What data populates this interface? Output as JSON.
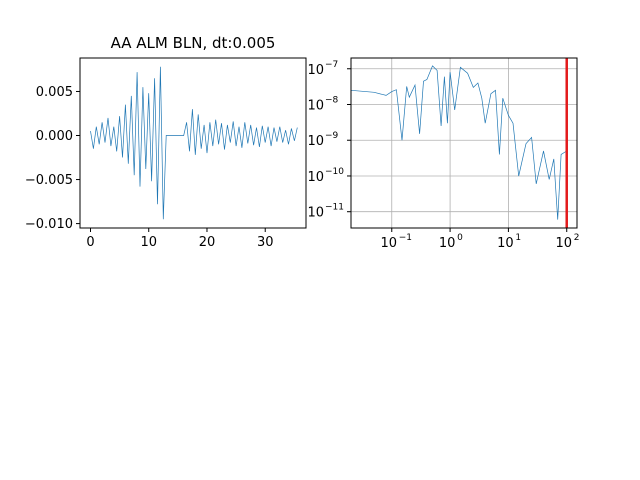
{
  "chart_data": [
    {
      "type": "line",
      "title": "AA ALM BLN, dt:0.005",
      "xlabel": "",
      "ylabel": "",
      "xlim": [
        -1.8,
        37
      ],
      "ylim": [
        -0.0105,
        0.0088
      ],
      "grid": false,
      "x_ticks": [
        0,
        10,
        20,
        30
      ],
      "x_tick_labels": [
        "0",
        "10",
        "20",
        "30"
      ],
      "y_ticks": [
        -0.01,
        -0.005,
        0.0,
        0.005
      ],
      "y_tick_labels": [
        "−0.010",
        "−0.005",
        "0.000",
        "0.005"
      ],
      "series": [
        {
          "color": "#1f77b4",
          "x": [
            0,
            0.5,
            1,
            1.5,
            2,
            2.5,
            3,
            3.5,
            4,
            4.5,
            5,
            5.5,
            6,
            6.5,
            7,
            7.5,
            8,
            8.5,
            9,
            9.5,
            10,
            10.5,
            11,
            11.5,
            12,
            12.5,
            13,
            14,
            15,
            16,
            16.5,
            17,
            17.5,
            18,
            18.5,
            19,
            19.5,
            20,
            20.5,
            21,
            21.5,
            22,
            22.5,
            23,
            23.5,
            24,
            24.5,
            25,
            25.5,
            26,
            26.5,
            27,
            27.5,
            28,
            28.5,
            29,
            29.5,
            30,
            30.5,
            31,
            31.5,
            32,
            32.5,
            33,
            33.5,
            34,
            34.5,
            35,
            35.5
          ],
          "values": [
            0.0005,
            -0.0015,
            0.001,
            -0.001,
            0.0015,
            -0.0008,
            0.002,
            -0.0012,
            0.001,
            -0.0018,
            0.0022,
            -0.0025,
            0.0035,
            -0.0032,
            0.0045,
            -0.0045,
            0.0072,
            -0.0058,
            0.0055,
            -0.0038,
            0.0048,
            -0.0052,
            0.0065,
            -0.0078,
            0.0078,
            -0.0095,
            0.0,
            0.0,
            0.0,
            0.0,
            0.0015,
            -0.0018,
            0.003,
            -0.0022,
            0.0024,
            -0.0015,
            0.0012,
            -0.002,
            0.0015,
            -0.0012,
            0.0018,
            -0.001,
            0.0014,
            -0.0016,
            0.0012,
            -0.0008,
            0.0016,
            -0.0012,
            0.001,
            -0.0014,
            0.0015,
            -0.0009,
            0.0012,
            -0.0011,
            0.0009,
            -0.0013,
            0.0011,
            -0.0008,
            0.001,
            -0.0012,
            0.0009,
            -0.0007,
            0.001,
            -0.0008,
            0.0006,
            -0.001,
            0.0008,
            -0.0006,
            0.0009
          ]
        }
      ]
    },
    {
      "type": "line",
      "title": "",
      "xlabel": "",
      "ylabel": "",
      "xscale": "log",
      "yscale": "log",
      "xlim": [
        0.02,
        150
      ],
      "ylim": [
        3.5e-12,
        2e-07
      ],
      "grid": true,
      "x_ticks": [
        0.1,
        1,
        10,
        100
      ],
      "x_tick_labels": [
        "10",
        "10",
        "10",
        "10"
      ],
      "x_tick_exponents": [
        "−1",
        "0",
        "1",
        "2"
      ],
      "y_ticks": [
        1e-11,
        1e-10,
        1e-09,
        1e-08,
        1e-07
      ],
      "y_tick_labels": [
        "10",
        "10",
        "10",
        "10",
        "10"
      ],
      "y_tick_exponents": [
        "−11",
        "−10",
        "−9",
        "−8",
        "−7"
      ],
      "vline": {
        "x": 100,
        "color": "#e31a1c"
      },
      "series": [
        {
          "color": "#1f77b4",
          "x": [
            0.02,
            0.05,
            0.08,
            0.1,
            0.12,
            0.15,
            0.18,
            0.2,
            0.25,
            0.3,
            0.35,
            0.4,
            0.5,
            0.6,
            0.7,
            0.8,
            0.9,
            1.0,
            1.2,
            1.5,
            2.0,
            2.5,
            3,
            3.5,
            4,
            5,
            6,
            7,
            8,
            10,
            12,
            15,
            20,
            25,
            30,
            40,
            50,
            60,
            70,
            80,
            100
          ],
          "values": [
            2.5e-08,
            2.2e-08,
            1.8e-08,
            2.3e-08,
            2.6e-08,
            1e-09,
            3.2e-08,
            1.6e-08,
            3.5e-08,
            1.5e-09,
            4.5e-08,
            5e-08,
            1.2e-07,
            9e-08,
            2.5e-09,
            6e-08,
            3e-09,
            8e-08,
            7e-09,
            1.1e-07,
            7.5e-08,
            3e-08,
            4e-08,
            1.5e-08,
            3e-09,
            2e-08,
            2.5e-08,
            4e-10,
            1.5e-08,
            5e-09,
            3e-09,
            1e-10,
            8e-10,
            1.2e-09,
            6e-11,
            5e-10,
            8e-11,
            3e-10,
            6e-12,
            4e-10,
            5e-10
          ]
        }
      ]
    }
  ]
}
